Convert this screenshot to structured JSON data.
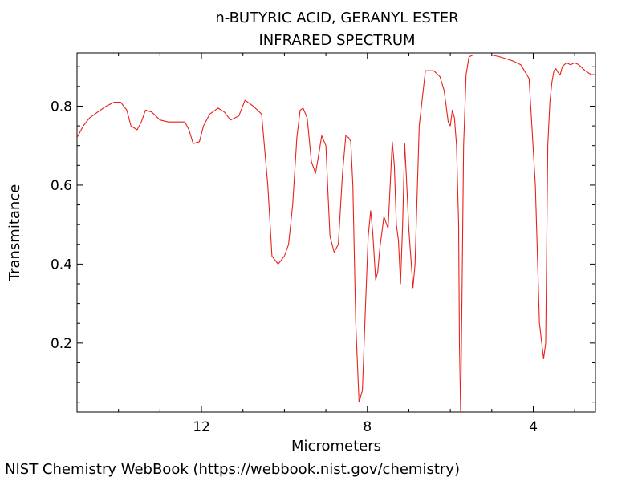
{
  "chart_data": {
    "type": "line",
    "title": "n-BUTYRIC ACID, GERANYL ESTER",
    "subtitle": "INFRARED SPECTRUM",
    "xlabel": "Micrometers",
    "ylabel": "Transmitance",
    "x_reversed": true,
    "xlim": [
      15.0,
      2.5
    ],
    "ylim": [
      0.025,
      0.935
    ],
    "x_ticks": [
      12,
      8,
      4
    ],
    "x_tick_labels": [
      "12",
      "8",
      "4"
    ],
    "y_ticks": [
      0.2,
      0.4,
      0.6,
      0.8
    ],
    "y_tick_labels": [
      "0.2",
      "0.4",
      "0.6",
      "0.8"
    ],
    "grid": false,
    "line_color": "#e8211b",
    "series": [
      {
        "x": [
          15.0,
          14.85,
          14.7,
          14.5,
          14.3,
          14.1,
          13.95,
          13.8,
          13.7,
          13.55,
          13.45,
          13.35,
          13.2,
          13.0,
          12.8,
          12.6,
          12.4,
          12.3,
          12.2,
          12.05,
          11.95,
          11.8,
          11.6,
          11.45,
          11.3,
          11.1,
          10.95,
          10.75,
          10.55,
          10.4,
          10.3,
          10.15,
          10.0,
          9.9,
          9.8,
          9.7,
          9.62,
          9.55,
          9.45,
          9.35,
          9.25,
          9.2,
          9.1,
          9.0,
          8.95,
          8.9,
          8.8,
          8.7,
          8.6,
          8.52,
          8.45,
          8.4,
          8.35,
          8.28,
          8.2,
          8.12,
          8.05,
          7.98,
          7.92,
          7.87,
          7.8,
          7.75,
          7.7,
          7.6,
          7.5,
          7.45,
          7.4,
          7.35,
          7.3,
          7.25,
          7.2,
          7.15,
          7.1,
          7.05,
          7.0,
          6.9,
          6.85,
          6.75,
          6.6,
          6.4,
          6.25,
          6.15,
          6.1,
          6.05,
          6.0,
          5.95,
          5.9,
          5.85,
          5.8,
          5.78,
          5.75,
          5.72,
          5.68,
          5.62,
          5.55,
          5.45,
          5.3,
          5.0,
          4.8,
          4.5,
          4.3,
          4.1,
          3.95,
          3.85,
          3.75,
          3.7,
          3.65,
          3.6,
          3.55,
          3.5,
          3.45,
          3.4,
          3.35,
          3.3,
          3.2,
          3.1,
          3.0,
          2.9,
          2.75,
          2.6,
          2.5
        ],
        "y": [
          0.72,
          0.75,
          0.77,
          0.785,
          0.8,
          0.81,
          0.81,
          0.79,
          0.75,
          0.74,
          0.76,
          0.79,
          0.785,
          0.765,
          0.76,
          0.76,
          0.76,
          0.74,
          0.705,
          0.71,
          0.75,
          0.78,
          0.795,
          0.785,
          0.765,
          0.775,
          0.815,
          0.8,
          0.78,
          0.6,
          0.42,
          0.4,
          0.42,
          0.45,
          0.55,
          0.72,
          0.79,
          0.795,
          0.77,
          0.66,
          0.63,
          0.66,
          0.725,
          0.7,
          0.58,
          0.47,
          0.43,
          0.45,
          0.63,
          0.725,
          0.72,
          0.71,
          0.6,
          0.25,
          0.05,
          0.08,
          0.28,
          0.47,
          0.535,
          0.48,
          0.36,
          0.38,
          0.44,
          0.52,
          0.49,
          0.6,
          0.71,
          0.65,
          0.5,
          0.46,
          0.35,
          0.5,
          0.705,
          0.6,
          0.49,
          0.34,
          0.4,
          0.75,
          0.89,
          0.89,
          0.875,
          0.84,
          0.8,
          0.76,
          0.75,
          0.79,
          0.77,
          0.7,
          0.5,
          0.2,
          0.025,
          0.3,
          0.7,
          0.88,
          0.925,
          0.93,
          0.93,
          0.93,
          0.925,
          0.915,
          0.905,
          0.87,
          0.6,
          0.25,
          0.16,
          0.2,
          0.7,
          0.81,
          0.86,
          0.89,
          0.895,
          0.885,
          0.88,
          0.9,
          0.91,
          0.905,
          0.91,
          0.905,
          0.89,
          0.88,
          0.88
        ]
      }
    ]
  },
  "footer": {
    "credit": "NIST Chemistry WebBook (https://webbook.nist.gov/chemistry)"
  }
}
